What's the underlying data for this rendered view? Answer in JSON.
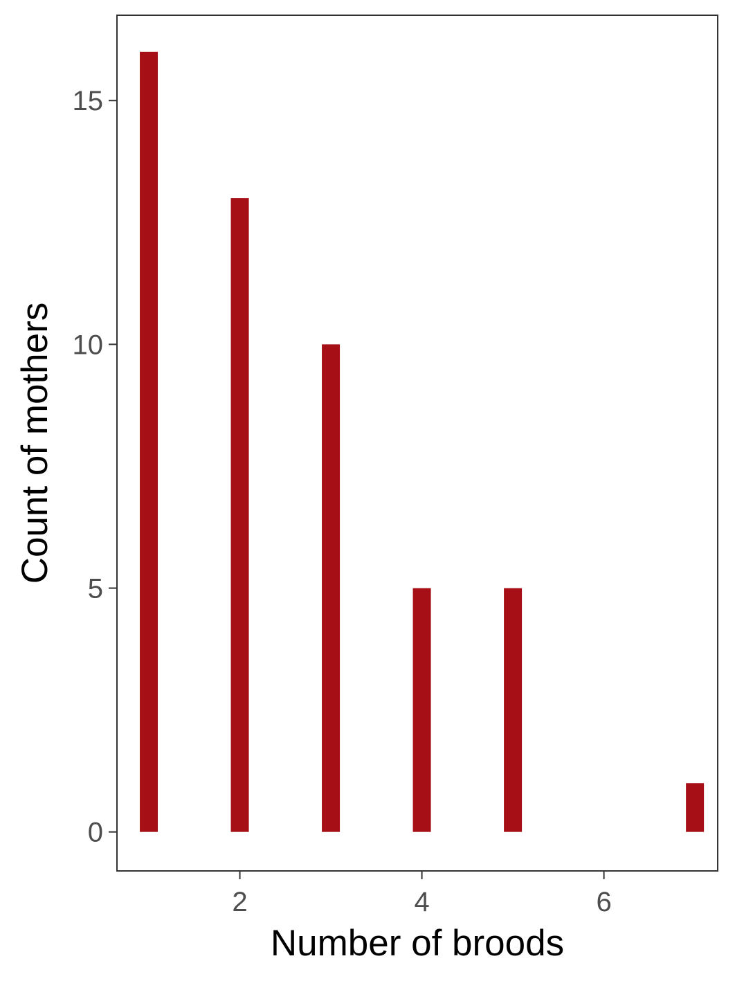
{
  "chart_data": {
    "type": "bar",
    "title": "",
    "xlabel": "Number of broods",
    "ylabel": "Count of mothers",
    "x": [
      1,
      2,
      3,
      4,
      5,
      7
    ],
    "values": [
      16,
      13,
      10,
      5,
      5,
      1
    ],
    "xlim": [
      0.65,
      7.25
    ],
    "ylim": [
      -0.8,
      16.75
    ],
    "x_ticks": [
      2,
      4,
      6
    ],
    "y_ticks": [
      0,
      5,
      10,
      15
    ],
    "x_tick_labels": [
      "2",
      "4",
      "6"
    ],
    "y_tick_labels": [
      "0",
      "5",
      "10",
      "15"
    ],
    "grid": false,
    "legend": "none",
    "bar_color": "#a50f15",
    "axis_color": "#333333",
    "tick_label_color": "#4d4d4d"
  }
}
